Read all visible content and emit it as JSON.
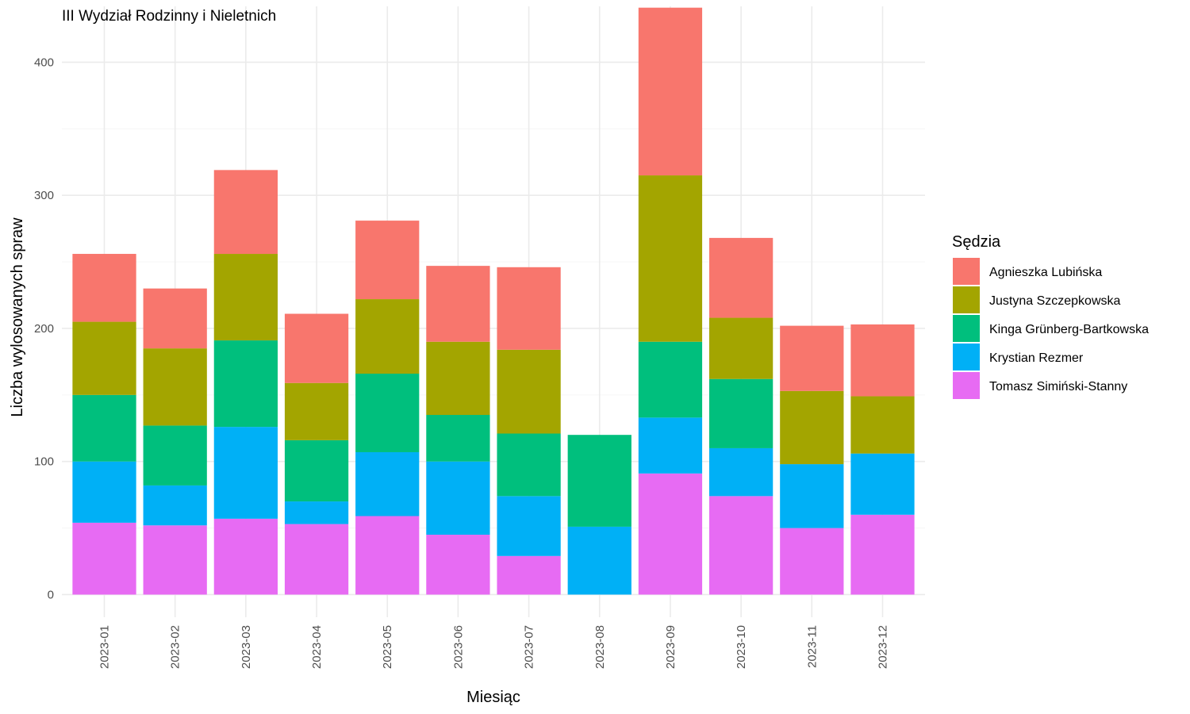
{
  "chart_data": {
    "type": "bar",
    "stacked": true,
    "title": "III Wydział Rodzinny i Nieletnich",
    "xlabel": "Miesiąc",
    "ylabel": "Liczba wylosowanych spraw",
    "ylim": [
      -17,
      442
    ],
    "yticks": [
      0,
      100,
      200,
      300,
      400
    ],
    "grid": true,
    "legend_position": "right",
    "legend_title": "Sędzia",
    "categories": [
      "2023-01",
      "2023-02",
      "2023-03",
      "2023-04",
      "2023-05",
      "2023-06",
      "2023-07",
      "2023-08",
      "2023-09",
      "2023-10",
      "2023-11",
      "2023-12"
    ],
    "series": [
      {
        "name": "Tomasz Simiński-Stanny",
        "color": "#E76BF3",
        "values": [
          54,
          52,
          57,
          53,
          59,
          45,
          29,
          0,
          91,
          74,
          50,
          60
        ]
      },
      {
        "name": "Krystian Rezmer",
        "color": "#00B0F6",
        "values": [
          46,
          30,
          69,
          17,
          48,
          55,
          45,
          51,
          42,
          36,
          48,
          46
        ]
      },
      {
        "name": "Kinga Grünberg-Bartkowska",
        "color": "#00BF7D",
        "values": [
          50,
          45,
          65,
          46,
          59,
          35,
          47,
          69,
          57,
          52,
          0,
          0
        ]
      },
      {
        "name": "Justyna Szczepkowska",
        "color": "#A3A500",
        "values": [
          55,
          58,
          65,
          43,
          56,
          55,
          63,
          0,
          125,
          46,
          55,
          43
        ]
      },
      {
        "name": "Agnieszka Lubińska",
        "color": "#F8766D",
        "values": [
          51,
          45,
          63,
          52,
          59,
          57,
          62,
          0,
          126,
          60,
          49,
          54
        ]
      }
    ],
    "legend_order": [
      "Agnieszka Lubińska",
      "Justyna Szczepkowska",
      "Kinga Grünberg-Bartkowska",
      "Krystian Rezmer",
      "Tomasz Simiński-Stanny"
    ]
  }
}
